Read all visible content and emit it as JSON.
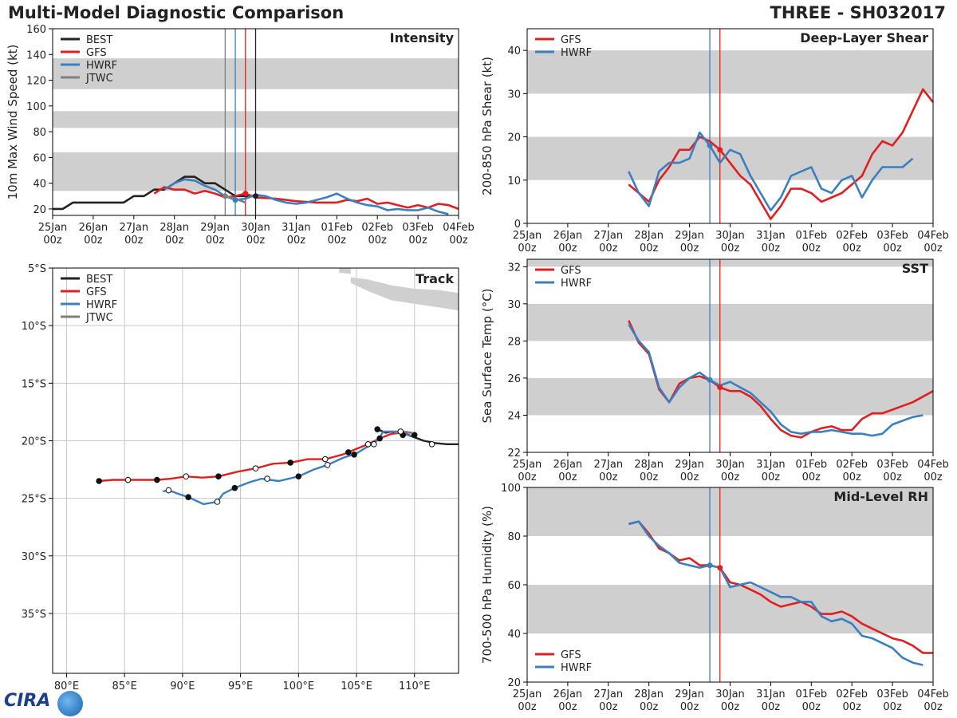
{
  "header": {
    "title": "Multi-Model Diagnostic Comparison",
    "storm": "THREE - SH032017"
  },
  "logo_text": "CIRA",
  "colors": {
    "BEST": "#222222",
    "GFS": "#e02020",
    "HWRF": "#3a7fc0",
    "JTWC": "#808080",
    "band": "#cfcfcf"
  },
  "time_axis": {
    "range": [
      0,
      10
    ],
    "ticks": [
      {
        "t": 0,
        "date": "25Jan",
        "hour": "00z"
      },
      {
        "t": 1,
        "date": "26Jan",
        "hour": "00z"
      },
      {
        "t": 2,
        "date": "27Jan",
        "hour": "00z"
      },
      {
        "t": 3,
        "date": "28Jan",
        "hour": "00z"
      },
      {
        "t": 4,
        "date": "29Jan",
        "hour": "00z"
      },
      {
        "t": 5,
        "date": "30Jan",
        "hour": "00z"
      },
      {
        "t": 6,
        "date": "31Jan",
        "hour": "00z"
      },
      {
        "t": 7,
        "date": "01Feb",
        "hour": "00z"
      },
      {
        "t": 8,
        "date": "02Feb",
        "hour": "00z"
      },
      {
        "t": 9,
        "date": "03Feb",
        "hour": "00z"
      },
      {
        "t": 10,
        "date": "04Feb",
        "hour": "00z"
      }
    ]
  },
  "chart_data": [
    {
      "id": "intensity",
      "type": "line",
      "title": "Intensity",
      "ylabel": "10m Max Wind Speed (kt)",
      "ylim": [
        15,
        160
      ],
      "yticks": [
        20,
        40,
        60,
        80,
        100,
        120,
        140,
        160
      ],
      "bands": [
        [
          34,
          64
        ],
        [
          83,
          96
        ],
        [
          113,
          137
        ]
      ],
      "legend": [
        "BEST",
        "GFS",
        "HWRF",
        "JTWC"
      ],
      "vlines": [
        {
          "t": 4.25,
          "series": "JTWC"
        },
        {
          "t": 4.5,
          "series": "HWRF"
        },
        {
          "t": 4.75,
          "series": "GFS"
        },
        {
          "t": 5.0,
          "series": "BEST"
        }
      ],
      "series": [
        {
          "name": "BEST",
          "x": [
            0,
            0.25,
            0.5,
            0.75,
            1,
            1.25,
            1.5,
            1.75,
            2,
            2.25,
            2.5,
            2.75,
            3,
            3.25,
            3.5,
            3.75,
            4,
            4.25,
            4.5,
            4.75,
            5
          ],
          "y": [
            20,
            20,
            25,
            25,
            25,
            25,
            25,
            25,
            30,
            30,
            35,
            35,
            40,
            45,
            45,
            40,
            40,
            35,
            30,
            30,
            30
          ]
        },
        {
          "name": "GFS",
          "x": [
            2.5,
            2.75,
            3,
            3.25,
            3.5,
            3.75,
            4,
            4.25,
            4.5,
            4.75,
            5,
            5.5,
            6,
            6.5,
            7,
            7.25,
            7.5,
            7.75,
            8,
            8.25,
            8.5,
            8.75,
            9,
            9.25,
            9.5,
            9.75,
            10
          ],
          "y": [
            32,
            37,
            35,
            35,
            32,
            34,
            32,
            29,
            30,
            32,
            29,
            28,
            26,
            25,
            25,
            27,
            26,
            28,
            24,
            25,
            23,
            21,
            23,
            21,
            24,
            23,
            20
          ]
        },
        {
          "name": "HWRF",
          "x": [
            2.75,
            3,
            3.25,
            3.5,
            3.75,
            4,
            4.25,
            4.5,
            4.75,
            5,
            5.25,
            5.5,
            5.75,
            6,
            6.25,
            6.5,
            6.75,
            7,
            7.25,
            7.5,
            7.75,
            8,
            8.25,
            8.5,
            8.75,
            9,
            9.25,
            9.5,
            9.75
          ],
          "y": [
            35,
            40,
            43,
            42,
            38,
            35,
            30,
            27,
            28,
            31,
            30,
            27,
            25,
            24,
            25,
            27,
            29,
            32,
            28,
            25,
            23,
            22,
            19,
            20,
            19,
            19,
            21,
            18,
            16
          ]
        },
        {
          "name": "JTWC",
          "x": [
            4.25,
            4.5,
            4.75
          ],
          "y": [
            30,
            28,
            25
          ]
        }
      ]
    },
    {
      "id": "shear",
      "type": "line",
      "title": "Deep-Layer Shear",
      "ylabel": "200-850 hPa Shear (kt)",
      "ylim": [
        0,
        45
      ],
      "yticks": [
        0,
        10,
        20,
        30,
        40
      ],
      "bands": [
        [
          10,
          20
        ],
        [
          30,
          40
        ]
      ],
      "legend": [
        "GFS",
        "HWRF"
      ],
      "vlines": [
        {
          "t": 4.5,
          "series": "HWRF"
        },
        {
          "t": 4.75,
          "series": "GFS"
        }
      ],
      "series": [
        {
          "name": "GFS",
          "x": [
            2.5,
            2.75,
            3,
            3.25,
            3.5,
            3.75,
            4,
            4.25,
            4.5,
            4.75,
            5,
            5.25,
            5.5,
            5.75,
            6,
            6.25,
            6.5,
            6.75,
            7,
            7.25,
            7.5,
            7.75,
            8,
            8.25,
            8.5,
            8.75,
            9,
            9.25,
            9.5,
            9.75,
            10
          ],
          "y": [
            9,
            7,
            5,
            10,
            13,
            17,
            17,
            20,
            19,
            17,
            14,
            11,
            9,
            5,
            1,
            4,
            8,
            8,
            7,
            5,
            6,
            7,
            9,
            11,
            16,
            19,
            18,
            21,
            26,
            31,
            28
          ]
        },
        {
          "name": "HWRF",
          "x": [
            2.5,
            2.75,
            3,
            3.25,
            3.5,
            3.75,
            4,
            4.25,
            4.5,
            4.75,
            5,
            5.25,
            5.5,
            5.75,
            6,
            6.25,
            6.5,
            6.75,
            7,
            7.25,
            7.5,
            7.75,
            8,
            8.25,
            8.5,
            8.75,
            9,
            9.25,
            9.5
          ],
          "y": [
            12,
            7,
            4,
            12,
            14,
            14,
            15,
            21,
            18,
            14,
            17,
            16,
            11,
            7,
            3,
            6,
            11,
            12,
            13,
            8,
            7,
            10,
            11,
            6,
            10,
            13,
            13,
            13,
            15
          ]
        }
      ]
    },
    {
      "id": "track",
      "type": "scatter",
      "title": "Track",
      "xlim": [
        78.8,
        113.8
      ],
      "ylim": [
        -40.2,
        -5
      ],
      "xticks": [
        80,
        85,
        90,
        95,
        100,
        105,
        110
      ],
      "xticklabels": [
        "80°E",
        "85°E",
        "90°E",
        "95°E",
        "100°E",
        "105°E",
        "110°E"
      ],
      "yticks": [
        -5,
        -10,
        -15,
        -20,
        -25,
        -30,
        -35
      ],
      "yticklabels": [
        "5°S",
        "10°S",
        "15°S",
        "20°S",
        "25°S",
        "30°S",
        "35°S"
      ],
      "legend": [
        "BEST",
        "GFS",
        "HWRF",
        "JTWC"
      ],
      "series": [
        {
          "name": "BEST",
          "lon": [
            113.8,
            112.8,
            111.8,
            110.8,
            110.0,
            109.5,
            108.7,
            108.0,
            107.5,
            106.8
          ],
          "lat": [
            -20.3,
            -20.3,
            -20.2,
            -20.0,
            -19.7,
            -19.5,
            -19.3,
            -19.2,
            -19.3,
            -19.0
          ]
        },
        {
          "name": "GFS",
          "lon": [
            82.8,
            84.0,
            85.3,
            86.5,
            87.8,
            89.0,
            90.3,
            91.7,
            93.1,
            94.7,
            96.3,
            97.8,
            99.3,
            100.8,
            102.3,
            103.8,
            105.0,
            106.0,
            107.0,
            108.0,
            109.0,
            109.8
          ],
          "lat": [
            -23.5,
            -23.4,
            -23.4,
            -23.4,
            -23.4,
            -23.3,
            -23.1,
            -23.2,
            -23.1,
            -22.7,
            -22.4,
            -22.0,
            -21.9,
            -21.6,
            -21.6,
            -21.2,
            -20.7,
            -20.3,
            -19.8,
            -19.4,
            -19.3,
            -19.3
          ]
        },
        {
          "name": "HWRF",
          "lon": [
            88.3,
            88.8,
            89.6,
            90.5,
            91.8,
            93.0,
            93.5,
            94.5,
            95.8,
            96.8,
            98.3,
            100.0,
            101.3,
            102.5,
            103.8,
            105.0,
            106.3,
            106.9,
            107.3,
            108.5,
            109.7
          ],
          "lat": [
            -24.4,
            -24.3,
            -24.6,
            -24.9,
            -25.5,
            -25.3,
            -24.6,
            -24.1,
            -23.6,
            -23.3,
            -23.5,
            -23.1,
            -22.5,
            -22.1,
            -21.5,
            -21.1,
            -20.3,
            -19.9,
            -19.2,
            -19.2,
            -19.6
          ]
        },
        {
          "name": "JTWC",
          "lon": [
            108.3,
            109.0,
            109.8
          ],
          "lat": [
            -19.3,
            -19.2,
            -19.3
          ]
        }
      ],
      "markers": {
        "GFS_filled": [
          [
            82.8,
            -23.5
          ],
          [
            87.8,
            -23.4
          ],
          [
            93.1,
            -23.1
          ],
          [
            99.3,
            -21.9
          ],
          [
            104.3,
            -21.0
          ],
          [
            107.0,
            -19.8
          ]
        ],
        "GFS_open": [
          [
            85.3,
            -23.4
          ],
          [
            90.3,
            -23.1
          ],
          [
            96.3,
            -22.4
          ],
          [
            102.3,
            -21.6
          ],
          [
            106.0,
            -20.3
          ]
        ],
        "HWRF_filled": [
          [
            90.5,
            -24.9
          ],
          [
            94.5,
            -24.1
          ],
          [
            100.0,
            -23.1
          ],
          [
            104.8,
            -21.2
          ],
          [
            109.0,
            -19.5
          ]
        ],
        "HWRF_open": [
          [
            88.8,
            -24.3
          ],
          [
            93.0,
            -25.3
          ],
          [
            97.3,
            -23.3
          ],
          [
            102.5,
            -22.1
          ],
          [
            106.5,
            -20.3
          ]
        ],
        "BEST_filled": [
          [
            106.8,
            -19.0
          ],
          [
            110.0,
            -19.5
          ]
        ],
        "BEST_open": [
          [
            108.8,
            -19.2
          ],
          [
            111.5,
            -20.3
          ]
        ]
      }
    },
    {
      "id": "sst",
      "type": "line",
      "title": "SST",
      "ylabel": "Sea Surface Temp (°C)",
      "ylim": [
        22,
        32.4
      ],
      "yticks": [
        22,
        24,
        26,
        28,
        30,
        32
      ],
      "bands": [
        [
          24,
          26
        ],
        [
          28,
          30
        ],
        [
          32,
          32.4
        ]
      ],
      "legend": [
        "GFS",
        "HWRF"
      ],
      "vlines": [
        {
          "t": 4.5,
          "series": "HWRF"
        },
        {
          "t": 4.75,
          "series": "GFS"
        }
      ],
      "series": [
        {
          "name": "GFS",
          "x": [
            2.5,
            2.75,
            3,
            3.25,
            3.5,
            3.75,
            4,
            4.25,
            4.5,
            4.75,
            5,
            5.25,
            5.5,
            5.75,
            6,
            6.25,
            6.5,
            6.75,
            7,
            7.25,
            7.5,
            7.75,
            8,
            8.25,
            8.5,
            8.75,
            9,
            9.25,
            9.5,
            9.75,
            10
          ],
          "y": [
            29.1,
            27.9,
            27.3,
            25.4,
            24.7,
            25.7,
            26.0,
            26.1,
            25.9,
            25.5,
            25.3,
            25.3,
            25.0,
            24.5,
            23.8,
            23.2,
            22.9,
            22.8,
            23.1,
            23.3,
            23.4,
            23.2,
            23.2,
            23.8,
            24.1,
            24.1,
            24.3,
            24.5,
            24.7,
            25.0,
            25.3
          ]
        },
        {
          "name": "HWRF",
          "x": [
            2.5,
            2.75,
            3,
            3.25,
            3.5,
            3.75,
            4,
            4.25,
            4.5,
            4.75,
            5,
            5.25,
            5.5,
            5.75,
            6,
            6.25,
            6.5,
            6.75,
            7,
            7.25,
            7.5,
            7.75,
            8,
            8.25,
            8.5,
            8.75,
            9,
            9.25,
            9.5,
            9.75
          ],
          "y": [
            28.9,
            28.0,
            27.4,
            25.5,
            24.7,
            25.5,
            26.0,
            26.3,
            25.9,
            25.6,
            25.8,
            25.5,
            25.2,
            24.7,
            24.2,
            23.5,
            23.1,
            23.0,
            23.1,
            23.1,
            23.2,
            23.1,
            23.0,
            23.0,
            22.9,
            23.0,
            23.5,
            23.7,
            23.9,
            24.0
          ]
        }
      ]
    },
    {
      "id": "rh",
      "type": "line",
      "title": "Mid-Level RH",
      "ylabel": "700-500 hPa Humidity (%)",
      "ylim": [
        20,
        100
      ],
      "yticks": [
        20,
        40,
        60,
        80,
        100
      ],
      "bands": [
        [
          40,
          60
        ],
        [
          80,
          100
        ]
      ],
      "legend": [
        "GFS",
        "HWRF"
      ],
      "legend_position": "bottom-left",
      "vlines": [
        {
          "t": 4.5,
          "series": "HWRF"
        },
        {
          "t": 4.75,
          "series": "GFS"
        }
      ],
      "series": [
        {
          "name": "GFS",
          "x": [
            2.5,
            2.75,
            3,
            3.25,
            3.5,
            3.75,
            4,
            4.25,
            4.5,
            4.75,
            5,
            5.25,
            5.5,
            5.75,
            6,
            6.25,
            6.5,
            6.75,
            7,
            7.25,
            7.5,
            7.75,
            8,
            8.25,
            8.5,
            8.75,
            9,
            9.25,
            9.5,
            9.75,
            10
          ],
          "y": [
            85,
            86,
            81,
            75,
            73,
            70,
            71,
            68,
            68,
            67,
            61,
            60,
            58,
            56,
            53,
            51,
            52,
            53,
            51,
            48,
            48,
            49,
            47,
            44,
            42,
            40,
            38,
            37,
            35,
            32,
            32
          ]
        },
        {
          "name": "HWRF",
          "x": [
            2.5,
            2.75,
            3,
            3.25,
            3.5,
            3.75,
            4,
            4.25,
            4.5,
            4.75,
            5,
            5.25,
            5.5,
            5.75,
            6,
            6.25,
            6.5,
            6.75,
            7,
            7.25,
            7.5,
            7.75,
            8,
            8.25,
            8.5,
            8.75,
            9,
            9.25,
            9.5,
            9.75
          ],
          "y": [
            85,
            86,
            80,
            76,
            73,
            69,
            68,
            67,
            68,
            67,
            59,
            60,
            61,
            59,
            57,
            55,
            55,
            53,
            53,
            47,
            45,
            46,
            44,
            39,
            38,
            36,
            34,
            30,
            28,
            27
          ]
        }
      ]
    }
  ]
}
